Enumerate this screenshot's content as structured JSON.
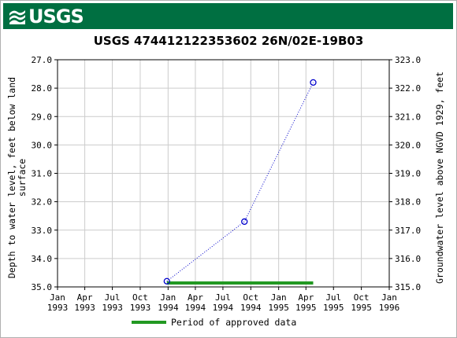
{
  "header": {
    "logo_text": "USGS",
    "brand_color": "#006f41"
  },
  "chart_data": {
    "type": "scatter",
    "title": "USGS 474412122353602 26N/02E-19B03",
    "ylabel_left": "Depth to water level, feet below land surface",
    "ylabel_left_lines": [
      "Depth to water level, feet below land",
      "surface"
    ],
    "ylabel_right": "Groundwater level above NGVD 1929, feet",
    "y_left_range": [
      27.0,
      35.0
    ],
    "y_left_inverted": true,
    "y_left_ticks": [
      "27.0",
      "28.0",
      "29.0",
      "30.0",
      "31.0",
      "32.0",
      "33.0",
      "34.0",
      "35.0"
    ],
    "y_right_range": [
      315.0,
      323.0
    ],
    "y_right_ticks": [
      "323.0",
      "322.0",
      "321.0",
      "320.0",
      "319.0",
      "318.0",
      "317.0",
      "316.0",
      "315.0"
    ],
    "x_range": [
      "1993-01-01",
      "1996-01-01"
    ],
    "x_ticks": [
      {
        "date": "1993-01-01",
        "month": "Jan",
        "year": "1993"
      },
      {
        "date": "1993-04-01",
        "month": "Apr",
        "year": "1993"
      },
      {
        "date": "1993-07-01",
        "month": "Jul",
        "year": "1993"
      },
      {
        "date": "1993-10-01",
        "month": "Oct",
        "year": "1993"
      },
      {
        "date": "1994-01-01",
        "month": "Jan",
        "year": "1994"
      },
      {
        "date": "1994-04-01",
        "month": "Apr",
        "year": "1994"
      },
      {
        "date": "1994-07-01",
        "month": "Jul",
        "year": "1994"
      },
      {
        "date": "1994-10-01",
        "month": "Oct",
        "year": "1994"
      },
      {
        "date": "1995-01-01",
        "month": "Jan",
        "year": "1995"
      },
      {
        "date": "1995-04-01",
        "month": "Apr",
        "year": "1995"
      },
      {
        "date": "1995-07-01",
        "month": "Jul",
        "year": "1995"
      },
      {
        "date": "1995-10-01",
        "month": "Oct",
        "year": "1995"
      },
      {
        "date": "1996-01-01",
        "month": "Jan",
        "year": "1996"
      }
    ],
    "grid": true,
    "series": [
      {
        "points": [
          {
            "date": "1993-12-28",
            "depth": 34.8
          },
          {
            "date": "1994-09-10",
            "depth": 32.7
          },
          {
            "date": "1995-04-25",
            "depth": 27.8
          }
        ],
        "color": "#0000cc",
        "marker": "circle",
        "line_style": "dotted"
      }
    ],
    "approved_period": {
      "start": "1993-12-28",
      "end": "1995-04-25",
      "color": "#229922"
    },
    "legend": {
      "label": "Period of approved data",
      "placement": "bottom"
    }
  }
}
